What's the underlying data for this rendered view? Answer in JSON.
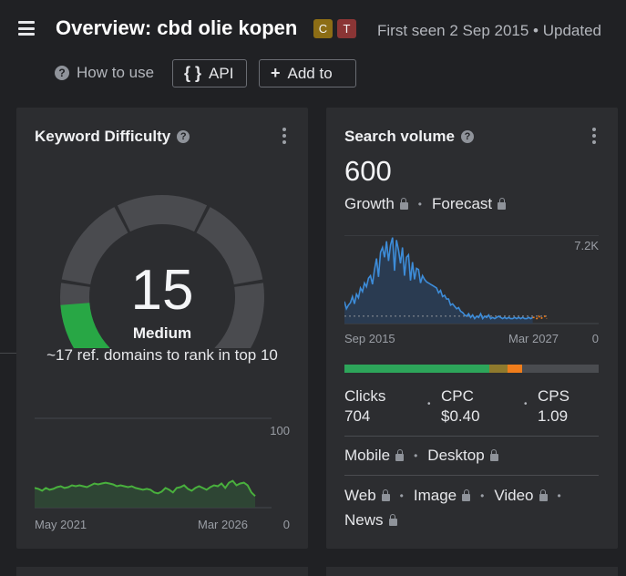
{
  "header": {
    "title": "Overview: cbd olie kopen",
    "badges": [
      "C",
      "T"
    ],
    "badge_colors": [
      "#8c6d15",
      "#8a3535"
    ],
    "meta": "First seen 2 Sep 2015  •  Updated",
    "how_to_use": "How to use",
    "api_label": "API",
    "api_icon": "{ }",
    "add_label": "Add to",
    "add_icon": "+"
  },
  "keyword_difficulty": {
    "title": "Keyword Difficulty",
    "value": "15",
    "level": "Medium",
    "subtitle": "~17 ref. domains to rank in top 10",
    "score_max": 100,
    "score": 15,
    "gauge_color": "#28a745",
    "trend": {
      "y_max_label": "100",
      "y_min_label": "0",
      "x_start": "May 2021",
      "x_end": "Mar 2026",
      "values": [
        22,
        21,
        19,
        22,
        20,
        21,
        23,
        24,
        22,
        23,
        25,
        24,
        25,
        24,
        23,
        25,
        27,
        26,
        27,
        28,
        27,
        26,
        24,
        25,
        24,
        23,
        24,
        22,
        21,
        20,
        21,
        20,
        17,
        16,
        18,
        22,
        20,
        17,
        22,
        23,
        25,
        21,
        19,
        22,
        24,
        22,
        20,
        23,
        25,
        24,
        27,
        22,
        28,
        30,
        25,
        27,
        28,
        25,
        17,
        13
      ]
    }
  },
  "search_volume": {
    "title": "Search volume",
    "value": "600",
    "growth_label": "Growth",
    "forecast_label": "Forecast",
    "chart": {
      "y_max_label": "7.2K",
      "y_min_label": "0",
      "x_start": "Sep 2015",
      "x_end": "Mar 2027",
      "y_max": 7200,
      "values": [
        1800,
        1200,
        1500,
        1700,
        2200,
        1600,
        2400,
        2100,
        2900,
        2600,
        3300,
        3000,
        3700,
        3900,
        3200,
        4400,
        5300,
        3800,
        5800,
        6200,
        5400,
        6700,
        5100,
        6400,
        7000,
        4300,
        6800,
        6000,
        4900,
        6200,
        3900,
        5400,
        5600,
        3500,
        5000,
        3600,
        4500,
        4400,
        3300,
        3900,
        3600,
        3400,
        3300,
        3200,
        3100,
        3000,
        2900,
        2500,
        2700,
        2200,
        2300,
        2000,
        2000,
        1500,
        1600,
        1400,
        1200,
        1300,
        1000,
        900,
        700,
        600,
        800,
        500,
        700,
        400,
        600,
        500,
        800,
        400,
        600,
        500,
        700,
        400,
        500,
        400,
        500,
        600,
        500,
        400,
        500,
        400,
        500,
        400,
        400,
        500,
        400,
        500,
        400,
        500,
        400,
        400,
        500,
        400,
        500
      ],
      "forecast_values": [
        500,
        400,
        600,
        400,
        500,
        600,
        400
      ]
    },
    "intent_segments": [
      {
        "color": "#2da55a",
        "share": 0.57
      },
      {
        "color": "#8f7a2d",
        "share": 0.07
      },
      {
        "color": "#f07d1b",
        "share": 0.06
      },
      {
        "color": "#4a4c50",
        "share": 0.3
      }
    ],
    "metrics": {
      "clicks_label": "Clicks",
      "clicks_value": "704",
      "cpc_label": "CPC",
      "cpc_value": "$0.40",
      "cps_label": "CPS",
      "cps_value": "1.09"
    },
    "device": {
      "mobile_label": "Mobile",
      "desktop_label": "Desktop"
    },
    "serp_features": {
      "web_label": "Web",
      "image_label": "Image",
      "video_label": "Video",
      "news_label": "News"
    }
  },
  "colors": {
    "background": "#202124",
    "card": "#2c2d30",
    "line_blue": "#3d8cd8",
    "line_green": "#49b03d",
    "forecast_orange": "#f07d1b"
  }
}
